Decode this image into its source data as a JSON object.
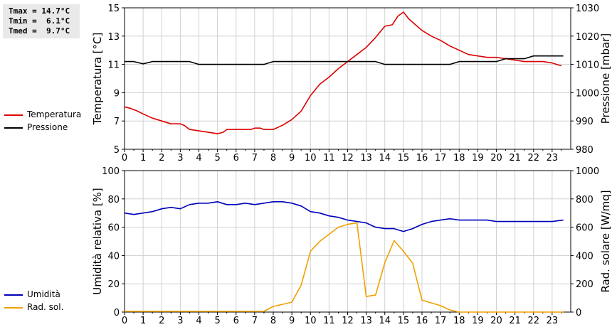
{
  "stats": {
    "tmax": "Tmax = 14.7°C",
    "tmin": "Tmin =  6.1°C",
    "tmed": "Tmed =  9.7°C"
  },
  "chart_data": [
    {
      "type": "line",
      "title": "",
      "xlabel": "",
      "xlim": [
        0,
        24
      ],
      "x_ticks": [
        0,
        1,
        2,
        3,
        4,
        5,
        6,
        7,
        8,
        9,
        10,
        11,
        12,
        13,
        14,
        15,
        16,
        17,
        18,
        19,
        20,
        21,
        22,
        23
      ],
      "left_axis": {
        "label": "Temperatura [°C]",
        "lim": [
          5,
          15
        ],
        "ticks": [
          5,
          7,
          9,
          11,
          13,
          15
        ]
      },
      "right_axis": {
        "label": "Pressione [mbar]",
        "lim": [
          980,
          1030
        ],
        "ticks": [
          980,
          990,
          1000,
          1010,
          1020,
          1030
        ]
      },
      "grid": true,
      "legend_position": "left",
      "series": [
        {
          "name": "Temperatura",
          "axis": "left",
          "color": "#dd0000",
          "points": [
            [
              0,
              8.0
            ],
            [
              0.3,
              7.9
            ],
            [
              0.7,
              7.7
            ],
            [
              1,
              7.5
            ],
            [
              1.5,
              7.2
            ],
            [
              2,
              7.0
            ],
            [
              2.5,
              6.8
            ],
            [
              3,
              6.8
            ],
            [
              3.2,
              6.7
            ],
            [
              3.5,
              6.4
            ],
            [
              4,
              6.3
            ],
            [
              4.5,
              6.2
            ],
            [
              5,
              6.1
            ],
            [
              5.3,
              6.2
            ],
            [
              5.5,
              6.4
            ],
            [
              6,
              6.4
            ],
            [
              6.5,
              6.4
            ],
            [
              6.8,
              6.4
            ],
            [
              7,
              6.5
            ],
            [
              7.3,
              6.5
            ],
            [
              7.5,
              6.4
            ],
            [
              8,
              6.4
            ],
            [
              8.5,
              6.7
            ],
            [
              9,
              7.1
            ],
            [
              9.5,
              7.7
            ],
            [
              10,
              8.8
            ],
            [
              10.5,
              9.6
            ],
            [
              11,
              10.1
            ],
            [
              11.5,
              10.7
            ],
            [
              12,
              11.2
            ],
            [
              12.5,
              11.7
            ],
            [
              13,
              12.2
            ],
            [
              13.5,
              12.9
            ],
            [
              14,
              13.7
            ],
            [
              14.4,
              13.8
            ],
            [
              14.7,
              14.4
            ],
            [
              15,
              14.7
            ],
            [
              15.3,
              14.2
            ],
            [
              16,
              13.4
            ],
            [
              16.5,
              13.0
            ],
            [
              17,
              12.7
            ],
            [
              17.5,
              12.3
            ],
            [
              18,
              12.0
            ],
            [
              18.5,
              11.7
            ],
            [
              19,
              11.6
            ],
            [
              19.5,
              11.5
            ],
            [
              20,
              11.5
            ],
            [
              20.5,
              11.4
            ],
            [
              21,
              11.3
            ],
            [
              21.5,
              11.2
            ],
            [
              22,
              11.2
            ],
            [
              22.5,
              11.2
            ],
            [
              23,
              11.1
            ],
            [
              23.5,
              10.9
            ]
          ]
        },
        {
          "name": "Pressione",
          "axis": "right",
          "color": "#000000",
          "points": [
            [
              0,
              1011
            ],
            [
              0.5,
              1011
            ],
            [
              1,
              1010.2
            ],
            [
              1.5,
              1011
            ],
            [
              2,
              1011
            ],
            [
              3,
              1011
            ],
            [
              3.5,
              1011
            ],
            [
              4,
              1010
            ],
            [
              5,
              1010
            ],
            [
              6,
              1010
            ],
            [
              7,
              1010
            ],
            [
              7.5,
              1010
            ],
            [
              8,
              1011
            ],
            [
              9,
              1011
            ],
            [
              10,
              1011
            ],
            [
              11,
              1011
            ],
            [
              12,
              1011
            ],
            [
              13,
              1011
            ],
            [
              13.5,
              1011
            ],
            [
              14,
              1010
            ],
            [
              15,
              1010
            ],
            [
              16,
              1010
            ],
            [
              17,
              1010
            ],
            [
              17.5,
              1010
            ],
            [
              18,
              1011
            ],
            [
              19,
              1011
            ],
            [
              20,
              1011
            ],
            [
              20.5,
              1012
            ],
            [
              21,
              1012
            ],
            [
              21.5,
              1012
            ],
            [
              22,
              1013
            ],
            [
              23,
              1013
            ],
            [
              23.6,
              1013
            ]
          ]
        }
      ]
    },
    {
      "type": "line",
      "title": "",
      "xlabel": "",
      "xlim": [
        0,
        24
      ],
      "x_ticks": [
        0,
        1,
        2,
        3,
        4,
        5,
        6,
        7,
        8,
        9,
        10,
        11,
        12,
        13,
        14,
        15,
        16,
        17,
        18,
        19,
        20,
        21,
        22,
        23
      ],
      "left_axis": {
        "label": "Umidità relativa [%]",
        "lim": [
          0,
          100
        ],
        "ticks": [
          0,
          20,
          40,
          60,
          80,
          100
        ]
      },
      "right_axis": {
        "label": "Rad. solare [W/mq]",
        "lim": [
          0,
          1000
        ],
        "ticks": [
          0,
          200,
          400,
          600,
          800,
          1000
        ]
      },
      "grid": true,
      "legend_position": "left",
      "series": [
        {
          "name": "Umidità",
          "axis": "left",
          "color": "#0000bb",
          "points": [
            [
              0,
              70
            ],
            [
              0.5,
              69
            ],
            [
              1,
              70
            ],
            [
              1.5,
              71
            ],
            [
              2,
              73
            ],
            [
              2.5,
              74
            ],
            [
              3,
              73
            ],
            [
              3.5,
              76
            ],
            [
              4,
              77
            ],
            [
              4.5,
              77
            ],
            [
              5,
              78
            ],
            [
              5.5,
              76
            ],
            [
              6,
              76
            ],
            [
              6.5,
              77
            ],
            [
              7,
              76
            ],
            [
              7.5,
              77
            ],
            [
              8,
              78
            ],
            [
              8.5,
              78
            ],
            [
              9,
              77
            ],
            [
              9.5,
              75
            ],
            [
              10,
              71
            ],
            [
              10.5,
              70
            ],
            [
              11,
              68
            ],
            [
              11.5,
              67
            ],
            [
              12,
              65
            ],
            [
              12.5,
              64
            ],
            [
              13,
              63
            ],
            [
              13.5,
              60
            ],
            [
              14,
              59
            ],
            [
              14.5,
              59
            ],
            [
              15,
              57
            ],
            [
              15.5,
              59
            ],
            [
              16,
              62
            ],
            [
              16.5,
              64
            ],
            [
              17,
              65
            ],
            [
              17.5,
              66
            ],
            [
              18,
              65
            ],
            [
              18.5,
              65
            ],
            [
              19,
              65
            ],
            [
              19.5,
              65
            ],
            [
              20,
              64
            ],
            [
              21,
              64
            ],
            [
              22,
              64
            ],
            [
              23,
              64
            ],
            [
              23.6,
              65
            ]
          ]
        },
        {
          "name": "Rad. sol.",
          "axis": "right",
          "color": "#f0a000",
          "points": [
            [
              0,
              5
            ],
            [
              1,
              5
            ],
            [
              2,
              5
            ],
            [
              3,
              5
            ],
            [
              4,
              5
            ],
            [
              5,
              5
            ],
            [
              6,
              5
            ],
            [
              7,
              5
            ],
            [
              7.5,
              5
            ],
            [
              8,
              40
            ],
            [
              8.5,
              55
            ],
            [
              9,
              70
            ],
            [
              9.5,
              190
            ],
            [
              10,
              430
            ],
            [
              10.5,
              500
            ],
            [
              11,
              550
            ],
            [
              11.5,
              600
            ],
            [
              12,
              620
            ],
            [
              12.5,
              630
            ],
            [
              13,
              110
            ],
            [
              13.5,
              120
            ],
            [
              14,
              350
            ],
            [
              14.5,
              505
            ],
            [
              15,
              430
            ],
            [
              15.5,
              345
            ],
            [
              16,
              85
            ],
            [
              16.5,
              65
            ],
            [
              17,
              45
            ],
            [
              17.5,
              15
            ],
            [
              18,
              0
            ],
            [
              19,
              0
            ],
            [
              20,
              0
            ],
            [
              21,
              0
            ],
            [
              22,
              0
            ],
            [
              23,
              0
            ],
            [
              23.6,
              0
            ]
          ]
        }
      ]
    }
  ]
}
